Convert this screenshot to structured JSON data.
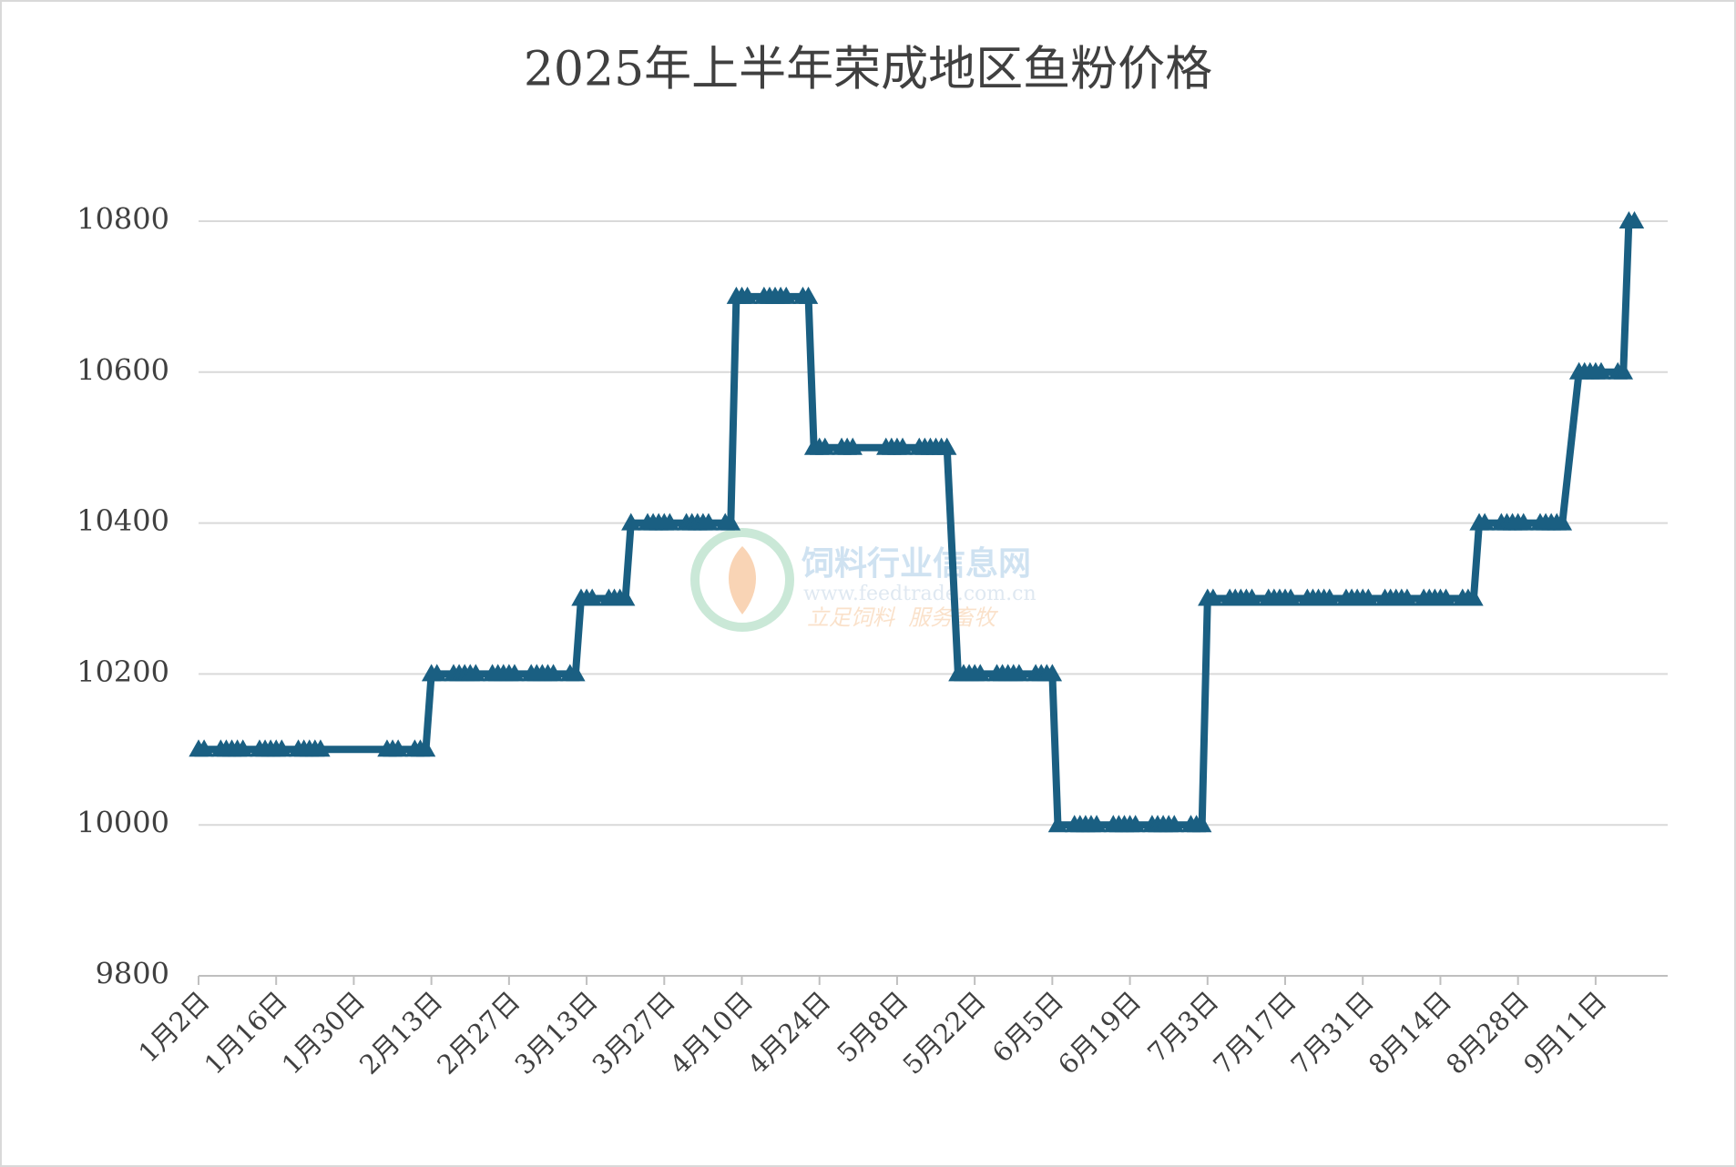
{
  "chart_data": {
    "type": "line",
    "title": "2025年上半年荣成地区鱼粉价格",
    "watermark": [
      "饲料行业信息网",
      "www.feedtrade.com.cn",
      "立足饲料  服务畜牧"
    ],
    "x": [
      2,
      3,
      6,
      7,
      8,
      9,
      10,
      13,
      14,
      15,
      16,
      17,
      20,
      21,
      22,
      23,
      24,
      36,
      37,
      38,
      41,
      42,
      43,
      44,
      45,
      48,
      49,
      50,
      51,
      52,
      55,
      56,
      57,
      58,
      59,
      62,
      63,
      64,
      65,
      66,
      69,
      70,
      71,
      72,
      73,
      76,
      77,
      78,
      79,
      80,
      83,
      84,
      85,
      86,
      87,
      90,
      91,
      92,
      93,
      94,
      97,
      98,
      99,
      100,
      101,
      104,
      105,
      106,
      107,
      108,
      111,
      112,
      113,
      114,
      115,
      118,
      119,
      120,
      126,
      127,
      128,
      129,
      132,
      133,
      134,
      135,
      136,
      137,
      139,
      140,
      141,
      142,
      143,
      146,
      147,
      148,
      149,
      150,
      153,
      154,
      155,
      156,
      157,
      160,
      161,
      162,
      163,
      164,
      167,
      168,
      169,
      170,
      171,
      174,
      175,
      176,
      177,
      178,
      181,
      182,
      183,
      184,
      185,
      188,
      189,
      190,
      191,
      192,
      195,
      196,
      197,
      198,
      199,
      202,
      203,
      204,
      205,
      206,
      209,
      210,
      211,
      212,
      213,
      216,
      217,
      218,
      219,
      220,
      223,
      224,
      225,
      226,
      227,
      230,
      231,
      232,
      233,
      234,
      237,
      238,
      239,
      240,
      241,
      244,
      245,
      246,
      247,
      248,
      251,
      252,
      253,
      254,
      255,
      258,
      259,
      260,
      261
    ],
    "series": [
      {
        "name": "鱼粉价格",
        "color": "#1a5f82",
        "values": [
          10100,
          10100,
          10100,
          10100,
          10100,
          10100,
          10100,
          10100,
          10100,
          10100,
          10100,
          10100,
          10100,
          10100,
          10100,
          10100,
          10100,
          10100,
          10100,
          10100,
          10100,
          10100,
          10100,
          10200,
          10200,
          10200,
          10200,
          10200,
          10200,
          10200,
          10200,
          10200,
          10200,
          10200,
          10200,
          10200,
          10200,
          10200,
          10200,
          10200,
          10200,
          10200,
          10300,
          10300,
          10300,
          10300,
          10300,
          10300,
          10300,
          10400,
          10400,
          10400,
          10400,
          10400,
          10400,
          10400,
          10400,
          10400,
          10400,
          10400,
          10400,
          10400,
          10700,
          10700,
          10700,
          10700,
          10700,
          10700,
          10700,
          10700,
          10700,
          10700,
          10500,
          10500,
          10500,
          10500,
          10500,
          10500,
          10500,
          10500,
          10500,
          10500,
          10500,
          10500,
          10500,
          10500,
          10500,
          10500,
          10200,
          10200,
          10200,
          10200,
          10200,
          10200,
          10200,
          10200,
          10200,
          10200,
          10200,
          10200,
          10200,
          10200,
          10000,
          10000,
          10000,
          10000,
          10000,
          10000,
          10000,
          10000,
          10000,
          10000,
          10000,
          10000,
          10000,
          10000,
          10000,
          10000,
          10000,
          10000,
          10000,
          10300,
          10300,
          10300,
          10300,
          10300,
          10300,
          10300,
          10300,
          10300,
          10300,
          10300,
          10300,
          10300,
          10300,
          10300,
          10300,
          10300,
          10300,
          10300,
          10300,
          10300,
          10300,
          10300,
          10300,
          10300,
          10300,
          10300,
          10300,
          10300,
          10300,
          10300,
          10300,
          10300,
          10300,
          10300,
          10400,
          10400,
          10400,
          10400,
          10400,
          10400,
          10400,
          10400,
          10400,
          10400,
          10400,
          10400,
          10600,
          10600,
          10600,
          10600,
          10600,
          10600,
          10600,
          10800,
          10800
        ]
      }
    ],
    "xlim": [
      2,
      267
    ],
    "xticks": [
      {
        "value": 2,
        "label": "1月2日"
      },
      {
        "value": 16,
        "label": "1月16日"
      },
      {
        "value": 30,
        "label": "1月30日"
      },
      {
        "value": 44,
        "label": "2月13日"
      },
      {
        "value": 58,
        "label": "2月27日"
      },
      {
        "value": 72,
        "label": "3月13日"
      },
      {
        "value": 86,
        "label": "3月27日"
      },
      {
        "value": 100,
        "label": "4月10日"
      },
      {
        "value": 114,
        "label": "4月24日"
      },
      {
        "value": 128,
        "label": "5月8日"
      },
      {
        "value": 142,
        "label": "5月22日"
      },
      {
        "value": 156,
        "label": "6月5日"
      },
      {
        "value": 170,
        "label": "6月19日"
      },
      {
        "value": 184,
        "label": "7月3日"
      },
      {
        "value": 198,
        "label": "7月17日"
      },
      {
        "value": 212,
        "label": "7月31日"
      },
      {
        "value": 226,
        "label": "8月14日"
      },
      {
        "value": 240,
        "label": "8月28日"
      },
      {
        "value": 254,
        "label": "9月11日"
      }
    ],
    "ylim": [
      9800,
      10800
    ],
    "yticks": [
      9800,
      10000,
      10200,
      10400,
      10600,
      10800
    ],
    "grid": true,
    "marker": "triangle"
  }
}
